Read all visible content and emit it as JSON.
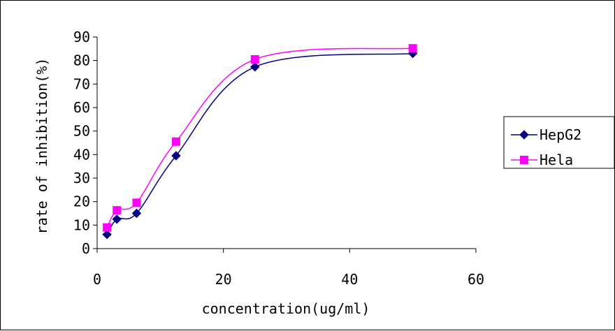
{
  "chart_data": {
    "type": "line",
    "title": "",
    "xlabel": "concentration(ug/ml)",
    "ylabel": "rate of inhibition(%)",
    "xlim": [
      0,
      60
    ],
    "ylim": [
      0,
      90
    ],
    "xticks": [
      0,
      20,
      40,
      60
    ],
    "yticks": [
      0,
      10,
      20,
      30,
      40,
      50,
      60,
      70,
      80,
      90
    ],
    "grid": false,
    "legend_position": "right",
    "x": [
      1.5625,
      3.125,
      6.25,
      12.5,
      25,
      50
    ],
    "series": [
      {
        "name": "HepG2",
        "values": [
          6,
          12.5,
          15,
          39.5,
          77.3,
          83
        ],
        "color": "#000080",
        "marker": "diamond"
      },
      {
        "name": "Hela",
        "values": [
          9,
          16.3,
          19.5,
          45.5,
          80.5,
          85.2
        ],
        "color": "#ff00ff",
        "marker": "square"
      }
    ]
  }
}
